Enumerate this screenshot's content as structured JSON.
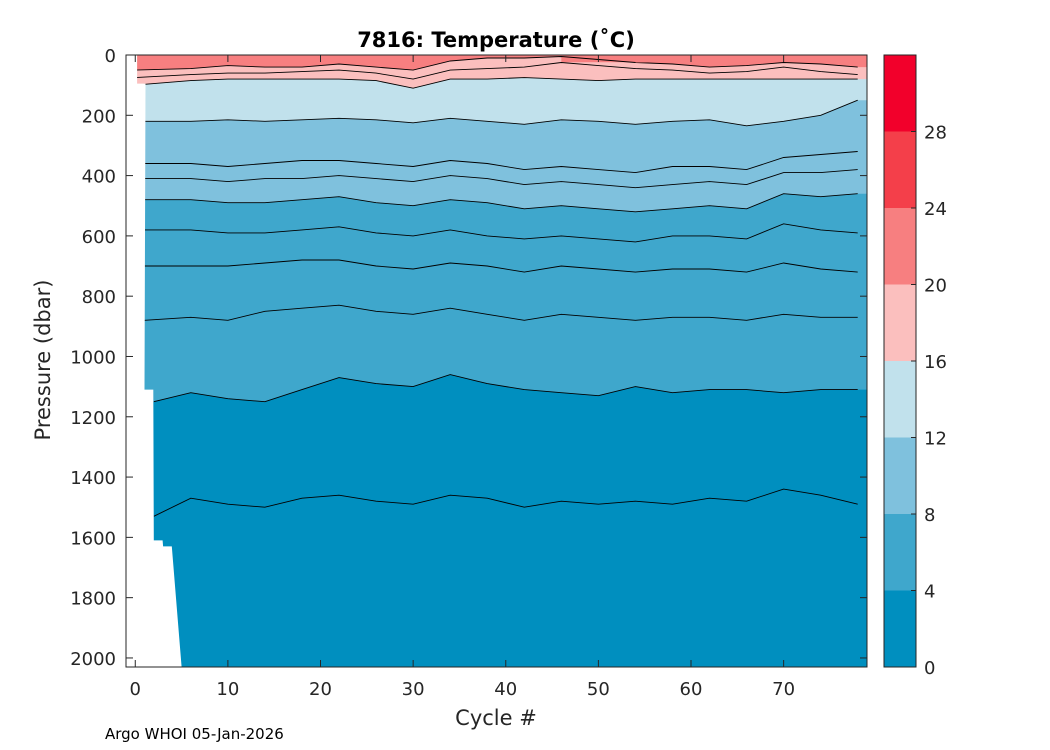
{
  "chart_data": {
    "type": "contour",
    "title": "7816:  Temperature (˚C)",
    "xlabel": "Cycle #",
    "ylabel": "Pressure (dbar)",
    "xlim": [
      -1,
      79
    ],
    "ylim": [
      2030,
      0
    ],
    "x_ticks": [
      0,
      10,
      20,
      30,
      40,
      50,
      60,
      70
    ],
    "y_ticks": [
      0,
      200,
      400,
      600,
      800,
      1000,
      1200,
      1400,
      1600,
      1800,
      2000
    ],
    "colorbar": {
      "levels": [
        0,
        4,
        8,
        12,
        16,
        20,
        24,
        28,
        32
      ],
      "tick_labels": [
        0,
        4,
        8,
        12,
        16,
        20,
        24,
        28
      ],
      "colors": [
        "#008fbf",
        "#3fa7cc",
        "#7fc1dd",
        "#c1e1ec",
        "#fbbfbe",
        "#f77f80",
        "#f43f4a",
        "#f2002b"
      ]
    },
    "contours": [
      {
        "temperature": 3,
        "x": [
          2,
          6,
          10,
          14,
          18,
          22,
          26,
          30,
          34,
          38,
          42,
          46,
          50,
          54,
          58,
          62,
          66,
          70,
          74,
          78
        ],
        "pressure": [
          1530,
          1470,
          1490,
          1500,
          1470,
          1460,
          1480,
          1490,
          1460,
          1470,
          1500,
          1480,
          1490,
          1480,
          1490,
          1470,
          1480,
          1440,
          1460,
          1490
        ]
      },
      {
        "temperature": 4,
        "x": [
          2,
          6,
          10,
          14,
          18,
          22,
          26,
          30,
          34,
          38,
          42,
          46,
          50,
          54,
          58,
          62,
          66,
          70,
          74,
          78
        ],
        "pressure": [
          1150,
          1120,
          1140,
          1150,
          1110,
          1070,
          1090,
          1100,
          1060,
          1090,
          1110,
          1120,
          1130,
          1100,
          1120,
          1110,
          1110,
          1120,
          1110,
          1110
        ]
      },
      {
        "temperature": 5,
        "x": [
          1,
          6,
          10,
          14,
          18,
          22,
          26,
          30,
          34,
          38,
          42,
          46,
          50,
          54,
          58,
          62,
          66,
          70,
          74,
          78
        ],
        "pressure": [
          880,
          870,
          880,
          850,
          840,
          830,
          850,
          860,
          840,
          860,
          880,
          860,
          870,
          880,
          870,
          870,
          880,
          860,
          870,
          870
        ]
      },
      {
        "temperature": 6,
        "x": [
          1,
          6,
          10,
          14,
          18,
          22,
          26,
          30,
          34,
          38,
          42,
          46,
          50,
          54,
          58,
          62,
          66,
          70,
          74,
          78
        ],
        "pressure": [
          700,
          700,
          700,
          690,
          680,
          680,
          700,
          710,
          690,
          700,
          720,
          700,
          710,
          720,
          710,
          710,
          720,
          690,
          710,
          720
        ]
      },
      {
        "temperature": 7,
        "x": [
          1,
          6,
          10,
          14,
          18,
          22,
          26,
          30,
          34,
          38,
          42,
          46,
          50,
          54,
          58,
          62,
          66,
          70,
          74,
          78
        ],
        "pressure": [
          580,
          580,
          590,
          590,
          580,
          570,
          590,
          600,
          580,
          600,
          610,
          600,
          610,
          620,
          600,
          600,
          610,
          560,
          580,
          590
        ]
      },
      {
        "temperature": 8,
        "x": [
          1,
          6,
          10,
          14,
          18,
          22,
          26,
          30,
          34,
          38,
          42,
          46,
          50,
          54,
          58,
          62,
          66,
          70,
          74,
          78
        ],
        "pressure": [
          480,
          480,
          490,
          490,
          480,
          470,
          490,
          500,
          480,
          490,
          510,
          500,
          510,
          520,
          510,
          500,
          510,
          460,
          470,
          460
        ]
      },
      {
        "temperature": 9,
        "x": [
          1,
          6,
          10,
          14,
          18,
          22,
          26,
          30,
          34,
          38,
          42,
          46,
          50,
          54,
          58,
          62,
          66,
          70,
          74,
          78
        ],
        "pressure": [
          410,
          410,
          420,
          410,
          410,
          400,
          410,
          420,
          400,
          410,
          430,
          420,
          430,
          440,
          430,
          420,
          430,
          390,
          390,
          380
        ]
      },
      {
        "temperature": 10,
        "x": [
          1,
          6,
          10,
          14,
          18,
          22,
          26,
          30,
          34,
          38,
          42,
          46,
          50,
          54,
          58,
          62,
          66,
          70,
          74,
          78
        ],
        "pressure": [
          360,
          360,
          370,
          360,
          350,
          350,
          360,
          370,
          350,
          360,
          380,
          370,
          380,
          390,
          370,
          370,
          380,
          340,
          330,
          320
        ]
      },
      {
        "temperature": 12,
        "x": [
          1,
          6,
          10,
          14,
          18,
          22,
          26,
          30,
          34,
          38,
          42,
          46,
          50,
          54,
          58,
          62,
          66,
          70,
          74,
          78
        ],
        "pressure": [
          220,
          220,
          215,
          220,
          215,
          210,
          215,
          225,
          210,
          220,
          230,
          215,
          220,
          230,
          220,
          215,
          235,
          220,
          200,
          150
        ]
      },
      {
        "temperature": 16,
        "x": [
          0,
          6,
          10,
          14,
          18,
          22,
          26,
          30,
          34,
          38,
          42,
          46,
          50,
          54,
          58,
          62,
          66,
          70,
          74,
          78
        ],
        "pressure": [
          100,
          85,
          80,
          80,
          80,
          80,
          85,
          110,
          80,
          80,
          75,
          80,
          85,
          80,
          80,
          80,
          80,
          80,
          80,
          80
        ]
      },
      {
        "temperature": 18,
        "x": [
          0,
          6,
          10,
          14,
          18,
          22,
          26,
          30,
          34,
          38,
          42,
          46,
          50,
          54,
          58,
          62,
          66,
          70,
          74,
          78
        ],
        "pressure": [
          75,
          65,
          60,
          60,
          55,
          50,
          60,
          80,
          50,
          45,
          40,
          25,
          35,
          45,
          50,
          60,
          55,
          40,
          55,
          65
        ]
      },
      {
        "temperature": 20,
        "x": [
          0,
          6,
          10,
          14,
          18,
          22,
          26,
          30,
          34,
          38,
          42,
          46,
          50,
          54,
          58,
          62,
          66,
          70,
          74,
          78
        ],
        "pressure": [
          50,
          45,
          35,
          40,
          40,
          30,
          40,
          50,
          20,
          10,
          10,
          5,
          15,
          25,
          30,
          40,
          35,
          25,
          30,
          40
        ]
      }
    ],
    "data_limits": [
      {
        "x": 1,
        "pressure": 1110
      },
      {
        "x": 2,
        "pressure": 1610
      },
      {
        "x": 3,
        "pressure": 1630
      },
      {
        "x": 5,
        "pressure": 2030
      }
    ]
  },
  "footer": {
    "text": "Argo WHOI 05-Jan-2026"
  }
}
